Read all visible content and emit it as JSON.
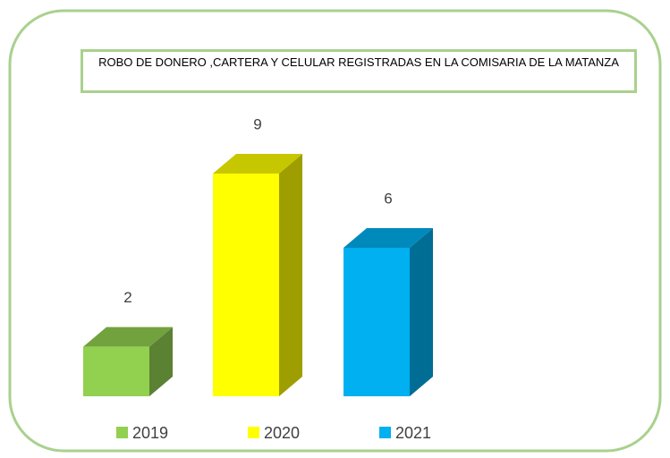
{
  "chart_data": {
    "type": "bar3d",
    "title": "ROBO DE DONERO ,CARTERA Y CELULAR REGISTRADAS EN LA COMISARIA DE LA MATANZA",
    "categories": [
      "2019",
      "2020",
      "2021"
    ],
    "values": [
      2,
      9,
      6
    ],
    "colors": [
      "#92d050",
      "#ffff00",
      "#00b0f0"
    ],
    "legend": "bottom"
  }
}
